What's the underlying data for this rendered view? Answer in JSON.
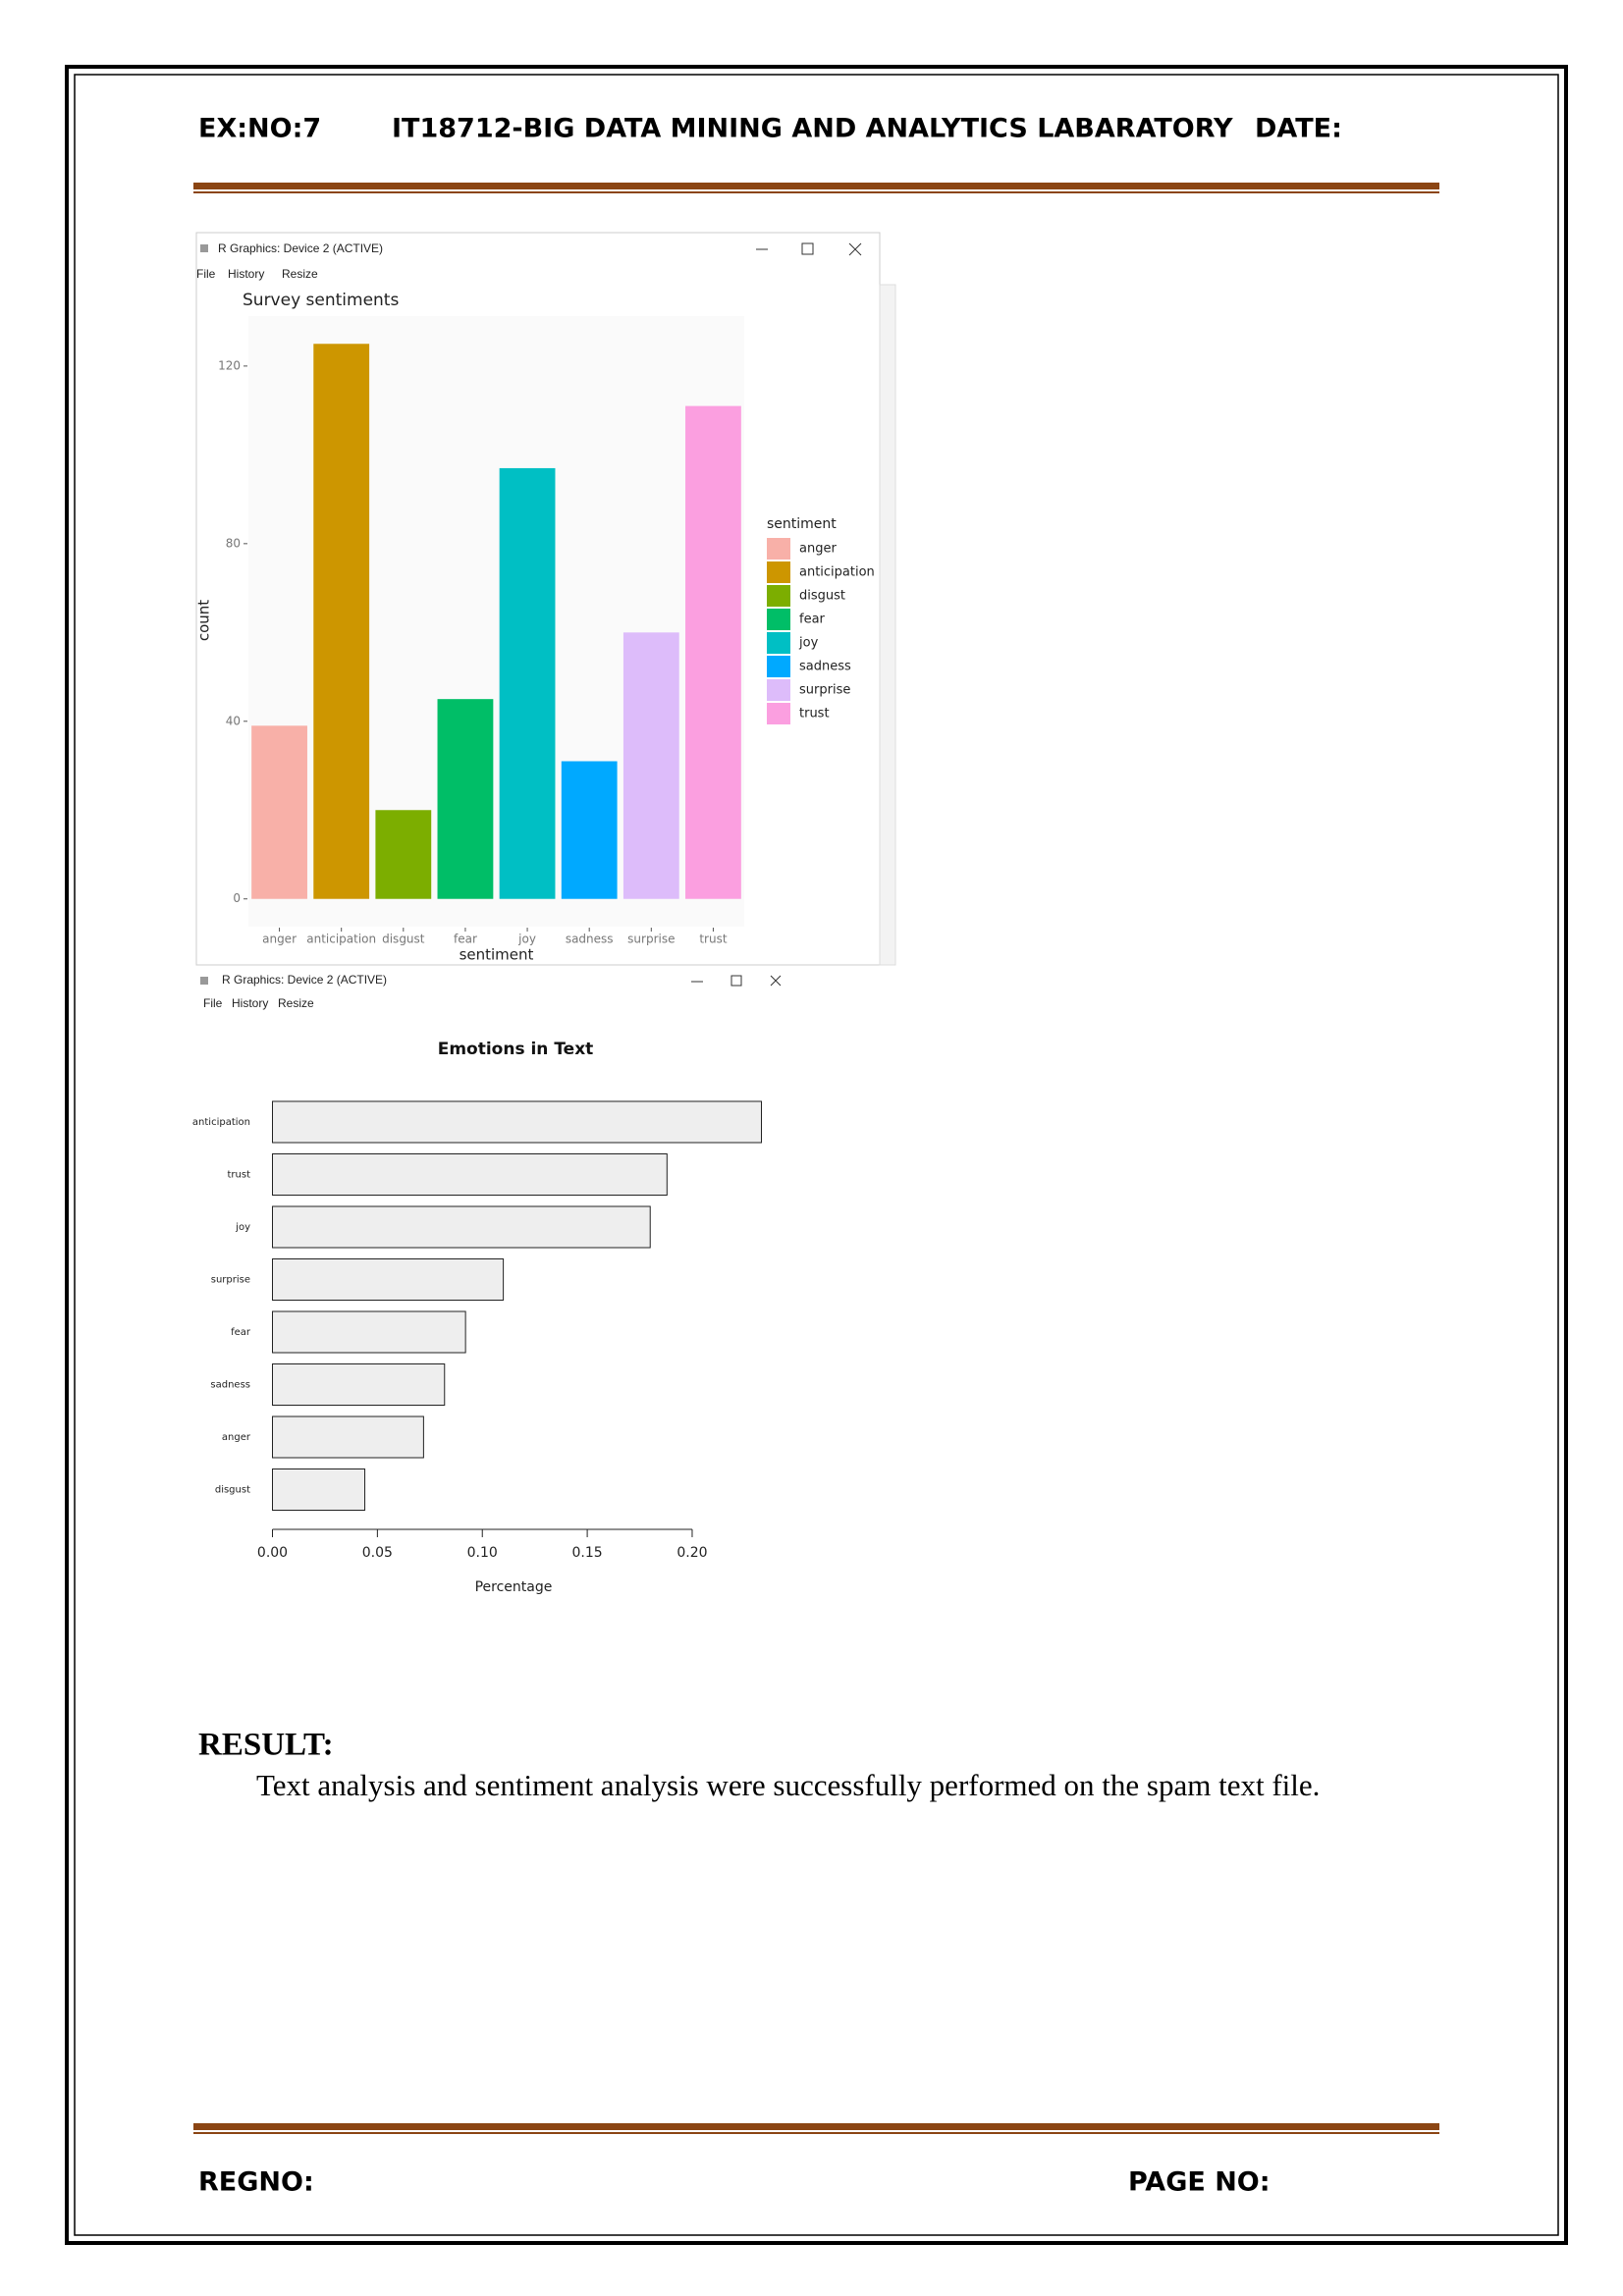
{
  "header": {
    "exercise": "EX:NO:7",
    "course": "IT18712-BIG DATA MINING AND ANALYTICS LABARATORY",
    "date": "DATE:"
  },
  "windows": [
    {
      "title": "R Graphics: Device 2 (ACTIVE)",
      "menu": [
        "File",
        "History",
        "Resize"
      ]
    },
    {
      "title": "R Graphics: Device 2 (ACTIVE)",
      "menu": [
        "File",
        "History",
        "Resize"
      ]
    }
  ],
  "chart_data": [
    {
      "type": "bar",
      "title": "Survey sentiments",
      "categories": [
        "anger",
        "anticipation",
        "disgust",
        "fear",
        "joy",
        "sadness",
        "surprise",
        "trust"
      ],
      "values": [
        39,
        125,
        20,
        45,
        97,
        31,
        60,
        111
      ],
      "colors": [
        "#f8b0a8",
        "#cd9600",
        "#7cae00",
        "#00be67",
        "#00bfc4",
        "#00a9ff",
        "#ddbcfa",
        "#fb9fe0"
      ],
      "xlabel": "sentiment",
      "ylabel": "count",
      "legend_title": "sentiment",
      "ylim": [
        -6.25,
        131.25
      ],
      "yticks": [
        0,
        40,
        80,
        120
      ]
    },
    {
      "type": "barh",
      "title": "Emotions in Text",
      "categories": [
        "anticipation",
        "trust",
        "joy",
        "surprise",
        "fear",
        "sadness",
        "anger",
        "disgust"
      ],
      "values": [
        0.233,
        0.188,
        0.18,
        0.11,
        0.092,
        0.082,
        0.072,
        0.044
      ],
      "color": "#eeeeee",
      "xlabel": "Percentage",
      "xlim": [
        0,
        0.233
      ],
      "xticks": [
        {
          "value": 0,
          "label": "0.00"
        },
        0.05,
        {
          "value": 0.1,
          "label": "0.10"
        },
        0.15,
        {
          "value": 0.2,
          "label": "0.20"
        }
      ]
    }
  ],
  "result": {
    "heading": "RESULT:",
    "text": "Text analysis and sentiment analysis were successfully performed on the spam text file."
  },
  "footer": {
    "regno": "REGNO:",
    "page_no": "PAGE NO:"
  }
}
